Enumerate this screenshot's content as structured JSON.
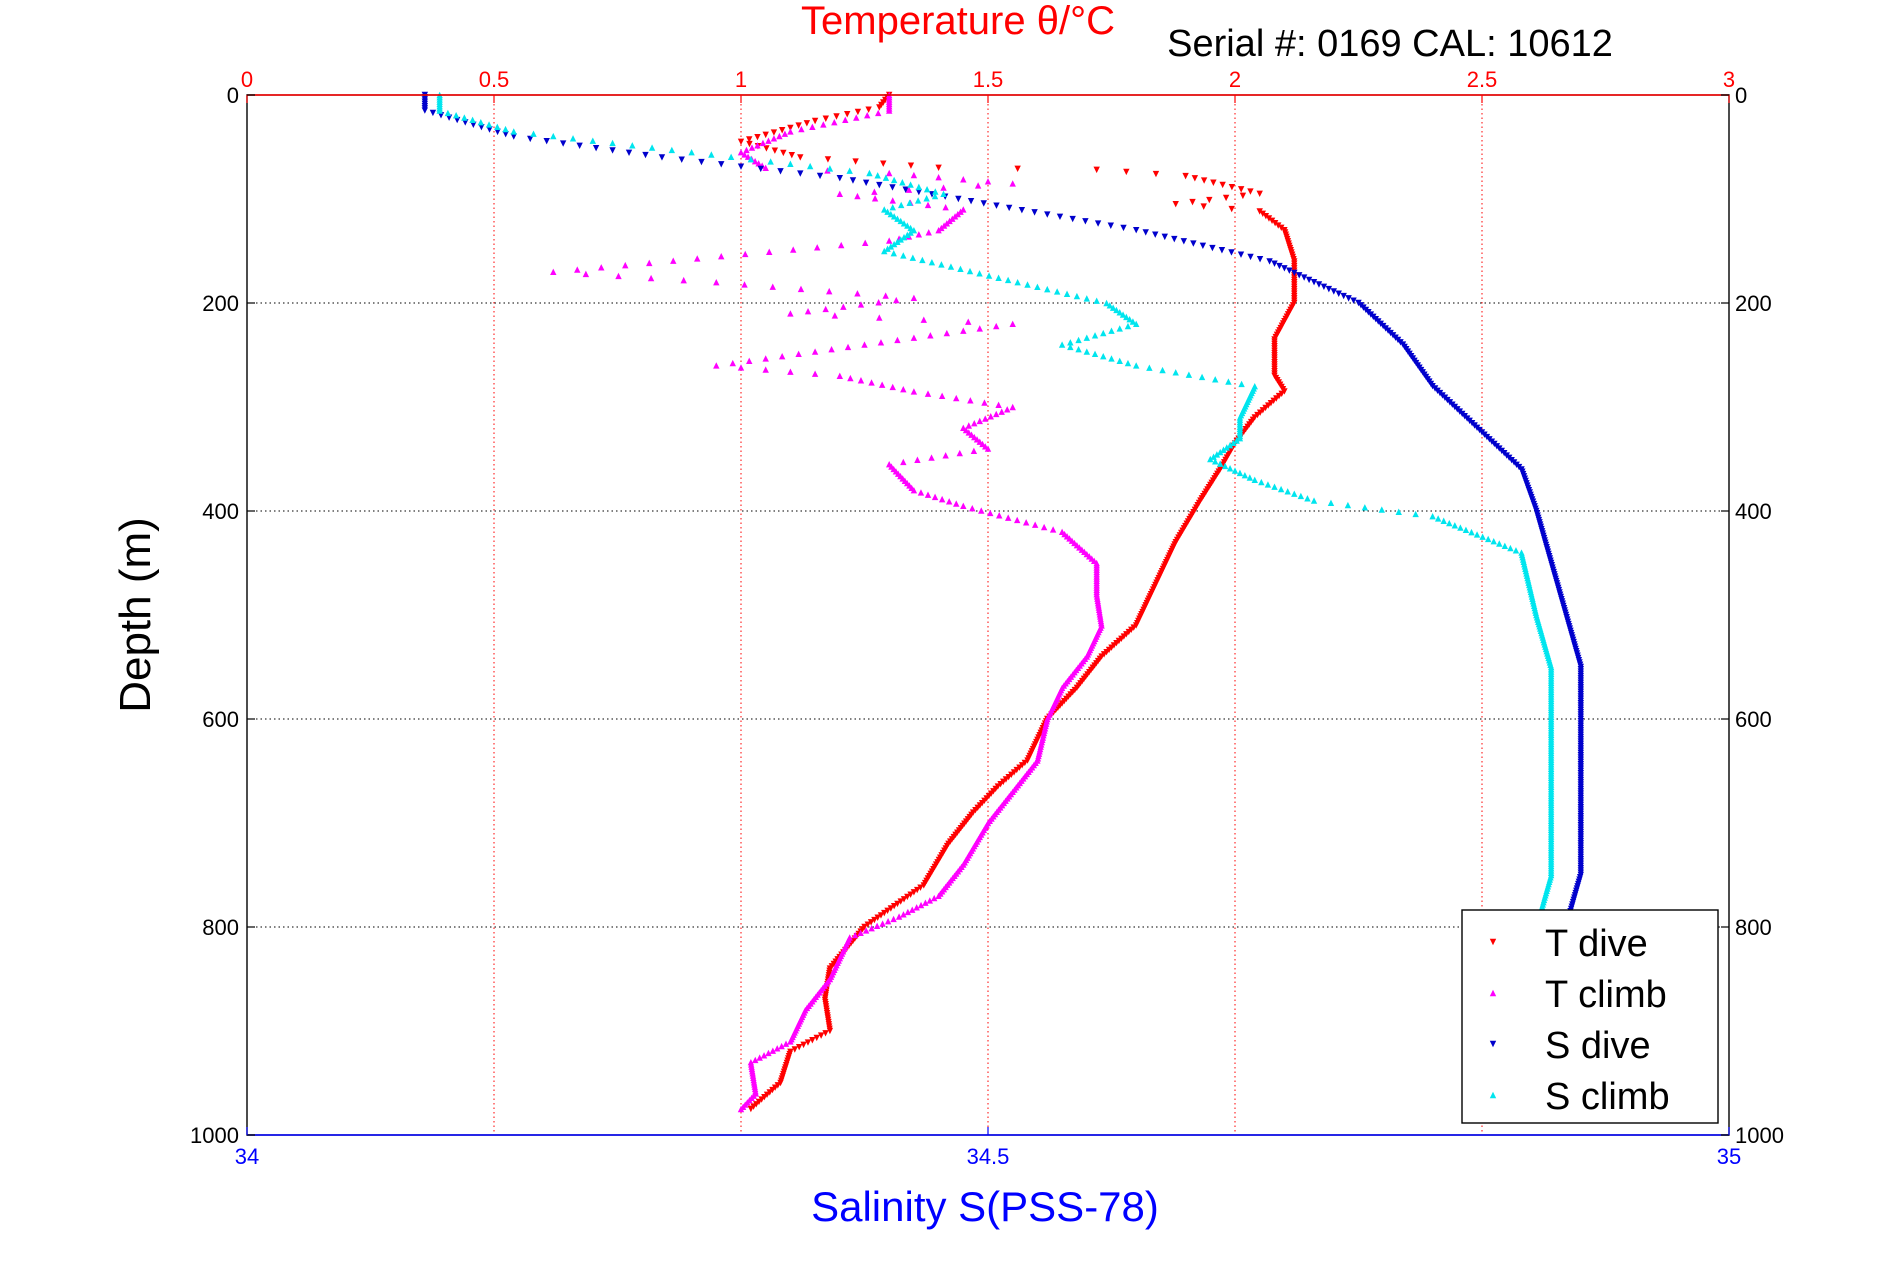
{
  "chart_data": {
    "type": "scatter",
    "top_axis": {
      "label": "Temperature θ/°C",
      "range": [
        0,
        3
      ],
      "ticks": [
        0,
        0.5,
        1,
        1.5,
        2,
        2.5,
        3
      ],
      "tick_labels": [
        "0",
        "0.5",
        "1",
        "1.5",
        "2",
        "2.5",
        "3"
      ],
      "color": "#ff0000"
    },
    "bottom_axis": {
      "label": "Salinity S(PSS-78)",
      "range": [
        34,
        35
      ],
      "ticks": [
        34,
        34.5,
        35
      ],
      "tick_labels": [
        "34",
        "34.5",
        "35"
      ],
      "color": "#0000ff"
    },
    "y_axis": {
      "label": "Depth (m)",
      "range": [
        0,
        1000
      ],
      "inverted": true,
      "ticks": [
        0,
        200,
        400,
        600,
        800,
        1000
      ],
      "tick_labels": [
        "0",
        "200",
        "400",
        "600",
        "800",
        "1000"
      ]
    },
    "annotation": "Serial #: 0169 CAL: 10612",
    "grid": true,
    "legend_position": "bottom-right",
    "series": [
      {
        "name": "T dive",
        "axis": "temperature",
        "color": "#ff0000",
        "marker": "triangle-down",
        "points": [
          [
            1.3,
            0
          ],
          [
            1.28,
            12
          ],
          [
            1.15,
            25
          ],
          [
            1.0,
            45
          ],
          [
            1.12,
            60
          ],
          [
            1.4,
            70
          ],
          [
            1.72,
            72
          ],
          [
            1.9,
            78
          ],
          [
            2.05,
            95
          ],
          [
            1.88,
            105
          ],
          [
            2.05,
            112
          ],
          [
            2.1,
            130
          ],
          [
            2.12,
            160
          ],
          [
            2.12,
            200
          ],
          [
            2.08,
            235
          ],
          [
            2.08,
            270
          ],
          [
            2.1,
            285
          ],
          [
            2.04,
            310
          ],
          [
            2.0,
            335
          ],
          [
            1.97,
            360
          ],
          [
            1.93,
            390
          ],
          [
            1.88,
            430
          ],
          [
            1.85,
            460
          ],
          [
            1.83,
            480
          ],
          [
            1.8,
            510
          ],
          [
            1.73,
            540
          ],
          [
            1.68,
            570
          ],
          [
            1.62,
            600
          ],
          [
            1.58,
            640
          ],
          [
            1.52,
            665
          ],
          [
            1.47,
            690
          ],
          [
            1.42,
            720
          ],
          [
            1.37,
            760
          ],
          [
            1.25,
            800
          ],
          [
            1.18,
            840
          ],
          [
            1.17,
            870
          ],
          [
            1.18,
            900
          ],
          [
            1.1,
            920
          ],
          [
            1.08,
            950
          ],
          [
            1.02,
            975
          ]
        ]
      },
      {
        "name": "T climb",
        "axis": "temperature",
        "color": "#ff00ff",
        "marker": "triangle-up",
        "points": [
          [
            1.3,
            0
          ],
          [
            1.3,
            15
          ],
          [
            1.1,
            35
          ],
          [
            1.0,
            55
          ],
          [
            1.05,
            70
          ],
          [
            1.3,
            75
          ],
          [
            1.55,
            85
          ],
          [
            1.2,
            95
          ],
          [
            1.45,
            110
          ],
          [
            1.4,
            130
          ],
          [
            1.3,
            140
          ],
          [
            0.62,
            170
          ],
          [
            0.95,
            180
          ],
          [
            1.35,
            195
          ],
          [
            1.1,
            210
          ],
          [
            1.55,
            220
          ],
          [
            0.95,
            260
          ],
          [
            1.2,
            270
          ],
          [
            1.35,
            285
          ],
          [
            1.55,
            300
          ],
          [
            1.45,
            320
          ],
          [
            1.5,
            340
          ],
          [
            1.3,
            355
          ],
          [
            1.35,
            380
          ],
          [
            1.45,
            395
          ],
          [
            1.65,
            420
          ],
          [
            1.72,
            450
          ],
          [
            1.72,
            480
          ],
          [
            1.73,
            510
          ],
          [
            1.7,
            540
          ],
          [
            1.65,
            570
          ],
          [
            1.62,
            600
          ],
          [
            1.6,
            640
          ],
          [
            1.55,
            670
          ],
          [
            1.5,
            700
          ],
          [
            1.45,
            740
          ],
          [
            1.4,
            770
          ],
          [
            1.32,
            790
          ],
          [
            1.22,
            810
          ],
          [
            1.18,
            850
          ],
          [
            1.13,
            880
          ],
          [
            1.1,
            910
          ],
          [
            1.02,
            930
          ],
          [
            1.03,
            960
          ],
          [
            1.0,
            975
          ]
        ]
      },
      {
        "name": "S dive",
        "axis": "salinity",
        "color": "#0000cc",
        "marker": "triangle-down",
        "points": [
          [
            34.12,
            0
          ],
          [
            34.12,
            15
          ],
          [
            34.18,
            40
          ],
          [
            34.28,
            60
          ],
          [
            34.4,
            80
          ],
          [
            34.48,
            100
          ],
          [
            34.6,
            130
          ],
          [
            34.69,
            160
          ],
          [
            34.75,
            200
          ],
          [
            34.78,
            240
          ],
          [
            34.8,
            280
          ],
          [
            34.83,
            320
          ],
          [
            34.86,
            360
          ],
          [
            34.87,
            400
          ],
          [
            34.88,
            450
          ],
          [
            34.89,
            500
          ],
          [
            34.9,
            550
          ],
          [
            34.9,
            600
          ],
          [
            34.9,
            650
          ],
          [
            34.9,
            700
          ],
          [
            34.9,
            750
          ],
          [
            34.89,
            800
          ],
          [
            34.88,
            850
          ],
          [
            34.89,
            900
          ],
          [
            34.88,
            950
          ],
          [
            34.87,
            975
          ]
        ]
      },
      {
        "name": "S climb",
        "axis": "salinity",
        "color": "#00e5ee",
        "marker": "triangle-up",
        "points": [
          [
            34.13,
            0
          ],
          [
            34.13,
            15
          ],
          [
            34.18,
            35
          ],
          [
            34.3,
            55
          ],
          [
            34.42,
            75
          ],
          [
            34.47,
            95
          ],
          [
            34.43,
            110
          ],
          [
            34.45,
            130
          ],
          [
            34.43,
            150
          ],
          [
            34.52,
            180
          ],
          [
            34.58,
            200
          ],
          [
            34.6,
            220
          ],
          [
            34.55,
            240
          ],
          [
            34.6,
            260
          ],
          [
            34.68,
            280
          ],
          [
            34.67,
            310
          ],
          [
            34.67,
            330
          ],
          [
            34.65,
            350
          ],
          [
            34.68,
            370
          ],
          [
            34.72,
            390
          ],
          [
            34.8,
            405
          ],
          [
            34.86,
            440
          ],
          [
            34.87,
            500
          ],
          [
            34.88,
            550
          ],
          [
            34.88,
            600
          ],
          [
            34.88,
            650
          ],
          [
            34.88,
            700
          ],
          [
            34.88,
            750
          ],
          [
            34.87,
            800
          ],
          [
            34.86,
            850
          ],
          [
            34.86,
            900
          ],
          [
            34.86,
            950
          ],
          [
            34.86,
            975
          ]
        ]
      }
    ]
  }
}
